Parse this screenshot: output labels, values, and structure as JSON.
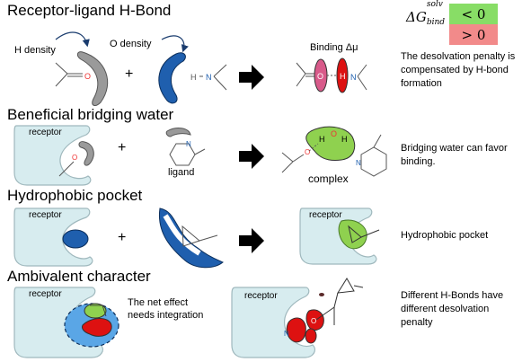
{
  "rows": {
    "hbond": {
      "title": "Receptor-ligand H-Bond",
      "h_density": "H density",
      "o_density": "O density",
      "plus": "+",
      "binding_label": "Binding Δμ",
      "description": "The desolvation penalty  is compensated by H-bond formation",
      "desc_lines": [
        "The desolvation penalty  is",
        "compensated by H-bond",
        "formation"
      ]
    },
    "bridging": {
      "title": "Beneficial bridging water",
      "receptor": "receptor",
      "plus": "+",
      "ligand": "ligand",
      "complex": "complex",
      "desc_lines": [
        "Bridging water can favor",
        "binding."
      ]
    },
    "hydrophobic": {
      "title": "Hydrophobic pocket",
      "receptor_left": "receptor",
      "plus": "+",
      "receptor_right": "receptor",
      "description": "Hydrophobic pocket"
    },
    "ambivalent": {
      "title": "Ambivalent character",
      "receptor_left": "receptor",
      "note_lines": [
        "The net effect",
        "needs integration"
      ],
      "receptor_right": "receptor",
      "desc_lines": [
        "Different H-Bonds have",
        "different desolvation",
        "penalty"
      ]
    }
  },
  "dg_table": {
    "symbol": "ΔG",
    "superscript": "solv",
    "subscript": "bind",
    "negative": "< 0",
    "positive": "> 0",
    "negative_color": "#88dd66",
    "positive_color": "#f28a8a"
  },
  "colors": {
    "receptor_fill": "#d7ecef",
    "receptor_stroke": "#9fb8bd",
    "hydrophilic_blue": "#1f5fae",
    "hydrophobic_grey": "#9a9a9a",
    "hbond_red": "#dd1111",
    "hbond_pink": "#d85a8a",
    "water_green": "#8fd14f"
  }
}
